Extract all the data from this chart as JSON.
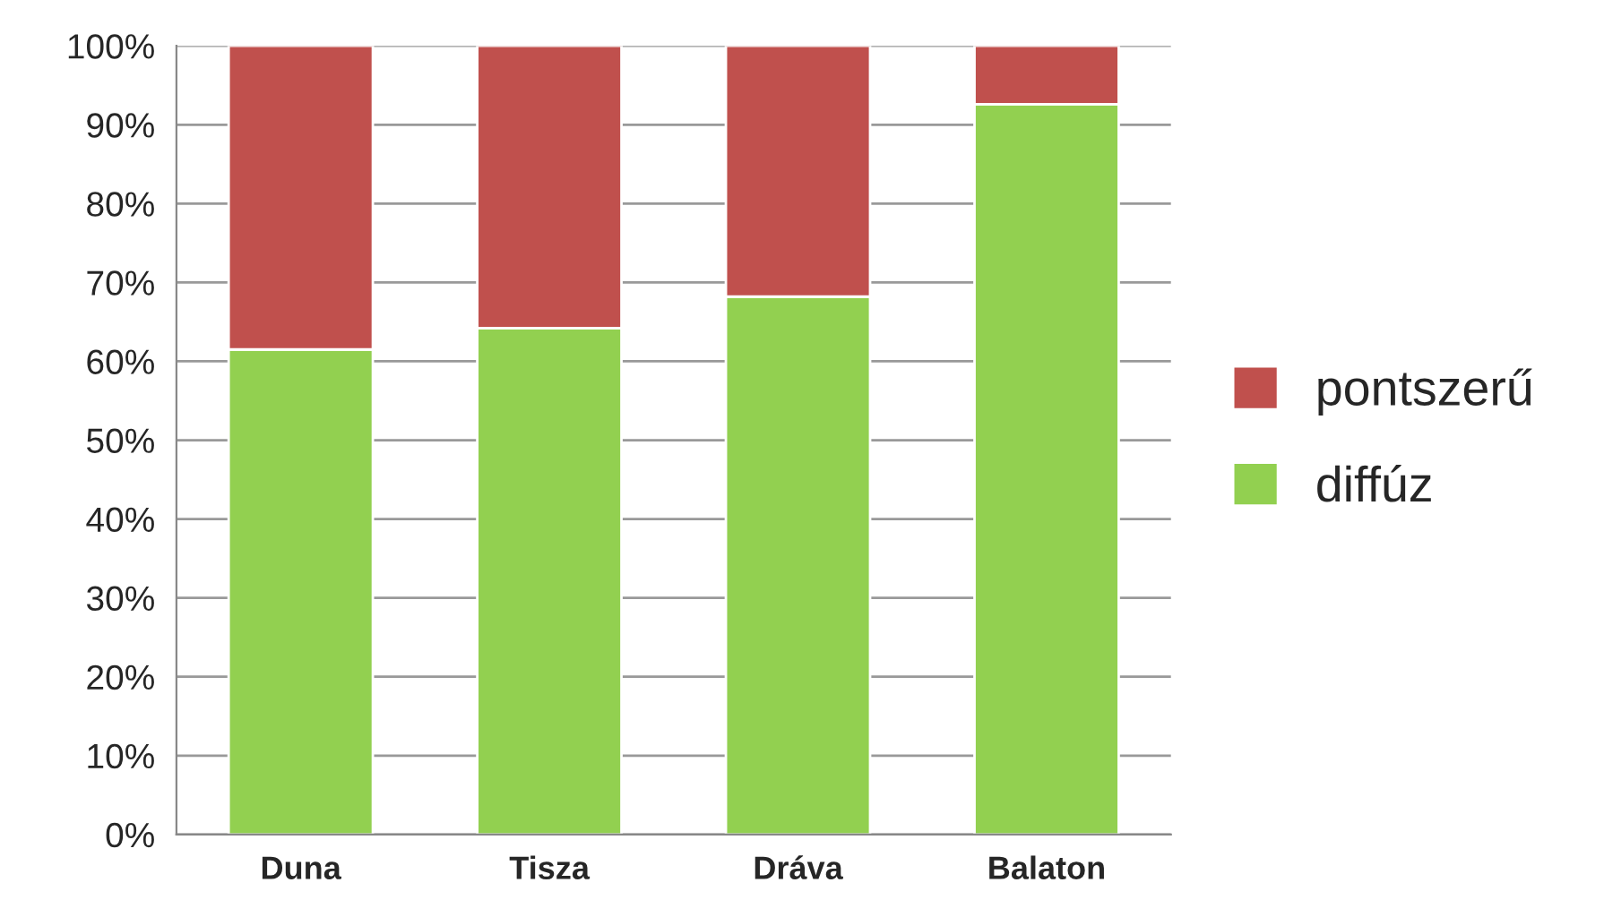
{
  "chart_data": {
    "type": "bar",
    "stacked": true,
    "categories": [
      "Duna",
      "Tisza",
      "Dráva",
      "Balaton"
    ],
    "series": [
      {
        "name": "diffúz",
        "color": "#92d050",
        "values": [
          61.5,
          64.2,
          68.2,
          92.6
        ]
      },
      {
        "name": "pontszerű",
        "color": "#c0504d",
        "values": [
          38.5,
          35.8,
          31.8,
          7.4
        ]
      }
    ],
    "ylim": [
      0,
      100
    ],
    "yticks": [
      {
        "value": 0,
        "label": "0%"
      },
      {
        "value": 10,
        "label": "10%"
      },
      {
        "value": 20,
        "label": "20%"
      },
      {
        "value": 30,
        "label": "30%"
      },
      {
        "value": 40,
        "label": "40%"
      },
      {
        "value": 50,
        "label": "50%"
      },
      {
        "value": 60,
        "label": "60%"
      },
      {
        "value": 70,
        "label": "70%"
      },
      {
        "value": 80,
        "label": "80%"
      },
      {
        "value": 90,
        "label": "90%"
      },
      {
        "value": 100,
        "label": "100%"
      }
    ],
    "grid": "y",
    "legend": "right"
  }
}
